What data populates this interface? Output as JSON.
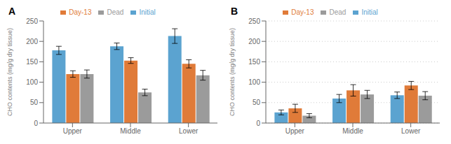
{
  "chart_data": [
    {
      "type": "bar",
      "title": "A",
      "categories": [
        "Upper",
        "Middle",
        "Lower"
      ],
      "series": [
        {
          "name": "Initial",
          "color": "#5BA3D0",
          "values": [
            178,
            188,
            213
          ],
          "errors": [
            10,
            8,
            18
          ]
        },
        {
          "name": "Day-13",
          "color": "#E07B39",
          "values": [
            120,
            153,
            145
          ],
          "errors": [
            8,
            7,
            10
          ]
        },
        {
          "name": "Dead",
          "color": "#9B9B9B",
          "values": [
            120,
            75,
            117
          ],
          "errors": [
            10,
            8,
            12
          ]
        }
      ],
      "y_label": "CHO contents (mg/g dry tissue)",
      "ylim": [
        0,
        250
      ],
      "yticks": [
        0,
        50,
        100,
        150,
        200,
        250
      ],
      "grid": false,
      "legend": "top"
    },
    {
      "type": "bar",
      "title": "B",
      "categories": [
        "Upper",
        "Middle",
        "Lower"
      ],
      "series": [
        {
          "name": "Initial",
          "color": "#5BA3D0",
          "values": [
            26,
            60,
            68
          ],
          "errors": [
            6,
            10,
            8
          ]
        },
        {
          "name": "Day-13",
          "color": "#E07B39",
          "values": [
            36,
            80,
            92
          ],
          "errors": [
            10,
            14,
            10
          ]
        },
        {
          "name": "Dead",
          "color": "#9B9B9B",
          "values": [
            18,
            70,
            67
          ],
          "errors": [
            5,
            10,
            10
          ]
        }
      ],
      "y_label": "CHO contents (mg/g dry tissue)",
      "ylim": [
        0,
        250
      ],
      "yticks": [
        0,
        50,
        100,
        150,
        200,
        250
      ],
      "grid": true,
      "legend": "top"
    }
  ]
}
